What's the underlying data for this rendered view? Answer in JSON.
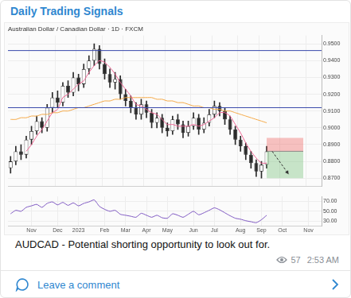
{
  "header": {
    "title": "Daily Trading Signals"
  },
  "chart_data": [
    {
      "type": "candlestick",
      "title": "Australian Dollar / Canadian Dollar · 1D · FXCM",
      "categories": [
        null,
        null,
        null,
        null,
        "Nov",
        null,
        null,
        null,
        null,
        "Dec",
        null,
        null,
        null,
        "2023",
        null,
        null,
        null,
        null,
        "Feb",
        null,
        null,
        null,
        "Mar",
        null,
        null,
        null,
        "Apr",
        null,
        null,
        null,
        "May",
        null,
        null,
        null,
        null,
        "Jun",
        null,
        null,
        null,
        "Jul",
        null,
        null,
        null,
        null,
        "Aug",
        null,
        null,
        null,
        "Sep",
        null,
        null,
        null,
        "Oct",
        null,
        null,
        null,
        null,
        "Nov",
        null,
        null
      ],
      "open": [
        0.876,
        0.88,
        0.886,
        0.884,
        0.893,
        0.898,
        0.904,
        0.9,
        0.912,
        0.918,
        0.915,
        0.925,
        0.921,
        0.93,
        0.926,
        0.935,
        0.94,
        0.947,
        0.938,
        0.932,
        0.927,
        0.929,
        0.92,
        0.916,
        0.912,
        0.908,
        0.914,
        0.909,
        0.903,
        0.906,
        0.9,
        0.898,
        0.905,
        0.902,
        0.897,
        0.901,
        0.906,
        0.899,
        0.903,
        0.908,
        0.913,
        0.91,
        0.905,
        0.899,
        0.893,
        0.889,
        0.884,
        0.879,
        0.874,
        0.878,
        null,
        null,
        null,
        null,
        null,
        null,
        null,
        null,
        null,
        null
      ],
      "high": [
        0.883,
        0.889,
        0.89,
        0.895,
        0.901,
        0.907,
        0.906,
        0.914,
        0.921,
        0.922,
        0.927,
        0.928,
        0.933,
        0.932,
        0.938,
        0.943,
        0.95,
        0.949,
        0.941,
        0.935,
        0.933,
        0.931,
        0.923,
        0.919,
        0.915,
        0.917,
        0.916,
        0.911,
        0.909,
        0.908,
        0.903,
        0.907,
        0.908,
        0.904,
        0.904,
        0.909,
        0.908,
        0.906,
        0.911,
        0.916,
        0.915,
        0.912,
        0.907,
        0.901,
        0.895,
        0.891,
        0.886,
        0.881,
        0.88,
        0.889,
        null,
        null,
        null,
        null,
        null,
        null,
        null,
        null,
        null,
        null
      ],
      "low": [
        0.873,
        0.878,
        0.881,
        0.882,
        0.89,
        0.896,
        0.897,
        0.898,
        0.909,
        0.912,
        0.913,
        0.918,
        0.919,
        0.922,
        0.924,
        0.932,
        0.937,
        0.935,
        0.929,
        0.924,
        0.923,
        0.917,
        0.913,
        0.909,
        0.905,
        0.905,
        0.906,
        0.9,
        0.9,
        0.897,
        0.895,
        0.896,
        0.899,
        0.894,
        0.895,
        0.899,
        0.896,
        0.897,
        0.901,
        0.906,
        0.907,
        0.902,
        0.896,
        0.89,
        0.886,
        0.881,
        0.876,
        0.871,
        0.87,
        0.876,
        null,
        null,
        null,
        null,
        null,
        null,
        null,
        null,
        null,
        null
      ],
      "close": [
        0.88,
        0.886,
        0.884,
        0.893,
        0.898,
        0.904,
        0.9,
        0.912,
        0.918,
        0.915,
        0.925,
        0.921,
        0.93,
        0.926,
        0.935,
        0.94,
        0.947,
        0.938,
        0.932,
        0.927,
        0.929,
        0.92,
        0.916,
        0.912,
        0.908,
        0.914,
        0.909,
        0.903,
        0.906,
        0.9,
        0.898,
        0.905,
        0.902,
        0.897,
        0.901,
        0.906,
        0.899,
        0.903,
        0.908,
        0.913,
        0.91,
        0.905,
        0.899,
        0.893,
        0.889,
        0.884,
        0.879,
        0.874,
        0.878,
        0.886,
        null,
        null,
        null,
        null,
        null,
        null,
        null,
        null,
        null,
        null
      ],
      "series": [
        {
          "type": "line",
          "color": "#f06292",
          "values": [
            null,
            null,
            null,
            0.886,
            0.89,
            0.895,
            0.899,
            0.904,
            0.909,
            0.911,
            0.918,
            0.92,
            0.923,
            0.926,
            0.928,
            0.933,
            0.937,
            0.94,
            0.939,
            0.936,
            0.932,
            0.927,
            0.923,
            0.919,
            0.914,
            0.913,
            0.911,
            0.909,
            0.908,
            0.905,
            0.902,
            0.902,
            0.901,
            0.901,
            0.901,
            0.902,
            0.901,
            0.902,
            0.904,
            0.906,
            0.909,
            0.909,
            0.907,
            0.902,
            0.897,
            0.891,
            0.886,
            0.882,
            0.879,
            0.879,
            null,
            null,
            null,
            null,
            null,
            null,
            null,
            null,
            null,
            null
          ]
        },
        {
          "type": "line",
          "color": "#f5a742",
          "values": [
            0.905,
            0.905,
            0.906,
            0.906,
            0.907,
            0.907,
            0.908,
            0.908,
            0.909,
            0.909,
            0.91,
            0.91,
            0.911,
            0.912,
            0.912,
            0.913,
            0.914,
            0.915,
            0.916,
            0.916,
            0.917,
            0.917,
            0.918,
            0.918,
            0.918,
            0.918,
            0.918,
            0.918,
            0.917,
            0.917,
            0.916,
            0.916,
            0.915,
            0.915,
            0.914,
            0.913,
            0.913,
            0.912,
            0.912,
            0.911,
            0.911,
            0.91,
            0.91,
            0.909,
            0.908,
            0.907,
            0.906,
            0.905,
            0.904,
            0.903,
            null,
            null,
            null,
            null,
            null,
            null,
            null,
            null,
            null,
            null
          ]
        }
      ],
      "levels": [
        0.946,
        0.912
      ],
      "position": {
        "entry": 0.886,
        "stop": 0.894,
        "target": 0.87,
        "x_start": 49,
        "x_end": 56
      },
      "ylim": [
        0.865,
        0.955
      ],
      "yticks": [
        {
          "value": 0.87,
          "label": "0.8700"
        },
        {
          "value": 0.88,
          "label": "0.8800"
        },
        {
          "value": 0.89,
          "label": "0.8900"
        },
        {
          "value": 0.9,
          "label": "0.9000"
        },
        {
          "value": 0.91,
          "label": "0.9100"
        },
        {
          "value": 0.92,
          "label": "0.9200"
        },
        {
          "value": 0.93,
          "label": "0.9300"
        },
        {
          "value": 0.94,
          "label": "0.9400"
        },
        {
          "value": 0.95,
          "label": "0.9500"
        }
      ],
      "grid": true,
      "tick_labels": "y"
    },
    {
      "type": "line",
      "categories": [
        null,
        null,
        null,
        null,
        "Nov",
        null,
        null,
        null,
        null,
        "Dec",
        null,
        null,
        null,
        "2023",
        null,
        null,
        null,
        null,
        "Feb",
        null,
        null,
        null,
        "Mar",
        null,
        null,
        null,
        "Apr",
        null,
        null,
        null,
        "May",
        null,
        null,
        null,
        null,
        "Jun",
        null,
        null,
        null,
        "Jul",
        null,
        null,
        null,
        null,
        "Aug",
        null,
        null,
        null,
        "Sep",
        null,
        null,
        null,
        "Oct",
        null,
        null,
        null,
        null,
        "Nov",
        null,
        null
      ],
      "values": [
        45,
        52,
        50,
        58,
        61,
        64,
        58,
        66,
        69,
        63,
        68,
        62,
        67,
        61,
        66,
        69,
        73,
        60,
        54,
        50,
        52,
        44,
        42,
        40,
        38,
        46,
        42,
        38,
        42,
        37,
        36,
        45,
        42,
        38,
        44,
        50,
        43,
        47,
        52,
        57,
        53,
        47,
        41,
        36,
        34,
        31,
        29,
        27,
        33,
        42,
        null,
        null,
        null,
        null,
        null,
        null,
        null,
        null,
        null,
        null
      ],
      "color": "#7e57c2",
      "ylim": [
        20,
        80
      ],
      "yticks": [
        {
          "value": 30,
          "label": "30.00"
        },
        {
          "value": 50,
          "label": "50.00"
        },
        {
          "value": 70,
          "label": "70.00"
        }
      ],
      "grid": true
    }
  ],
  "caption": "AUDCAD - Potential shorting opportunity to look out for.",
  "meta": {
    "views": 57,
    "time": "2:53 AM"
  },
  "footer": {
    "action": "Leave a comment"
  }
}
